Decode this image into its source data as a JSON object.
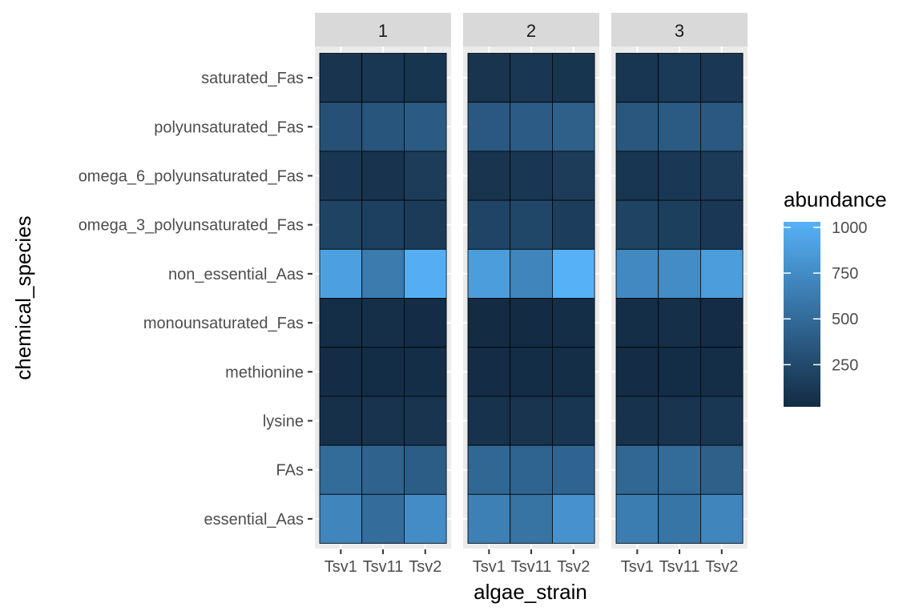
{
  "chart_data": {
    "type": "heatmap",
    "xlabel": "algae_strain",
    "ylabel": "chemical_species",
    "facets": [
      "1",
      "2",
      "3"
    ],
    "x_categories": [
      "Tsv1",
      "Tsv11",
      "Tsv2"
    ],
    "x_tick_labels": [
      "Tsv1",
      "Tsv11",
      "Tsv2"
    ],
    "y_categories": [
      "saturated_Fas",
      "polyunsaturated_Fas",
      "omega_6_polyunsaturated_Fas",
      "omega_3_polyunsaturated_Fas",
      "non_essential_Aas",
      "monounsaturated_Fas",
      "methionine",
      "lysine",
      "FAs",
      "essential_Aas"
    ],
    "legend": {
      "title": "abundance",
      "position": "right",
      "breaks": [
        250,
        500,
        750,
        1000
      ],
      "break_labels": [
        "250",
        "500",
        "750",
        "1000"
      ],
      "min": 20,
      "max": 1030,
      "low_color": "#132B43",
      "high_color": "#56B1F7"
    },
    "values": {
      "1": [
        [
          90,
          110,
          95
        ],
        [
          300,
          340,
          380
        ],
        [
          110,
          80,
          150
        ],
        [
          200,
          180,
          140
        ],
        [
          900,
          620,
          1010
        ],
        [
          40,
          50,
          30
        ],
        [
          30,
          35,
          40
        ],
        [
          60,
          80,
          90
        ],
        [
          500,
          440,
          400
        ],
        [
          700,
          520,
          750
        ]
      ],
      "2": [
        [
          90,
          110,
          95
        ],
        [
          360,
          390,
          420
        ],
        [
          90,
          110,
          150
        ],
        [
          210,
          230,
          160
        ],
        [
          880,
          700,
          1030
        ],
        [
          20,
          25,
          40
        ],
        [
          30,
          35,
          40
        ],
        [
          70,
          90,
          100
        ],
        [
          470,
          450,
          450
        ],
        [
          660,
          560,
          800
        ]
      ],
      "3": [
        [
          100,
          130,
          120
        ],
        [
          350,
          380,
          360
        ],
        [
          100,
          120,
          140
        ],
        [
          200,
          170,
          120
        ],
        [
          730,
          750,
          880
        ],
        [
          40,
          50,
          30
        ],
        [
          30,
          35,
          40
        ],
        [
          70,
          90,
          110
        ],
        [
          470,
          500,
          420
        ],
        [
          640,
          580,
          700
        ]
      ]
    }
  }
}
